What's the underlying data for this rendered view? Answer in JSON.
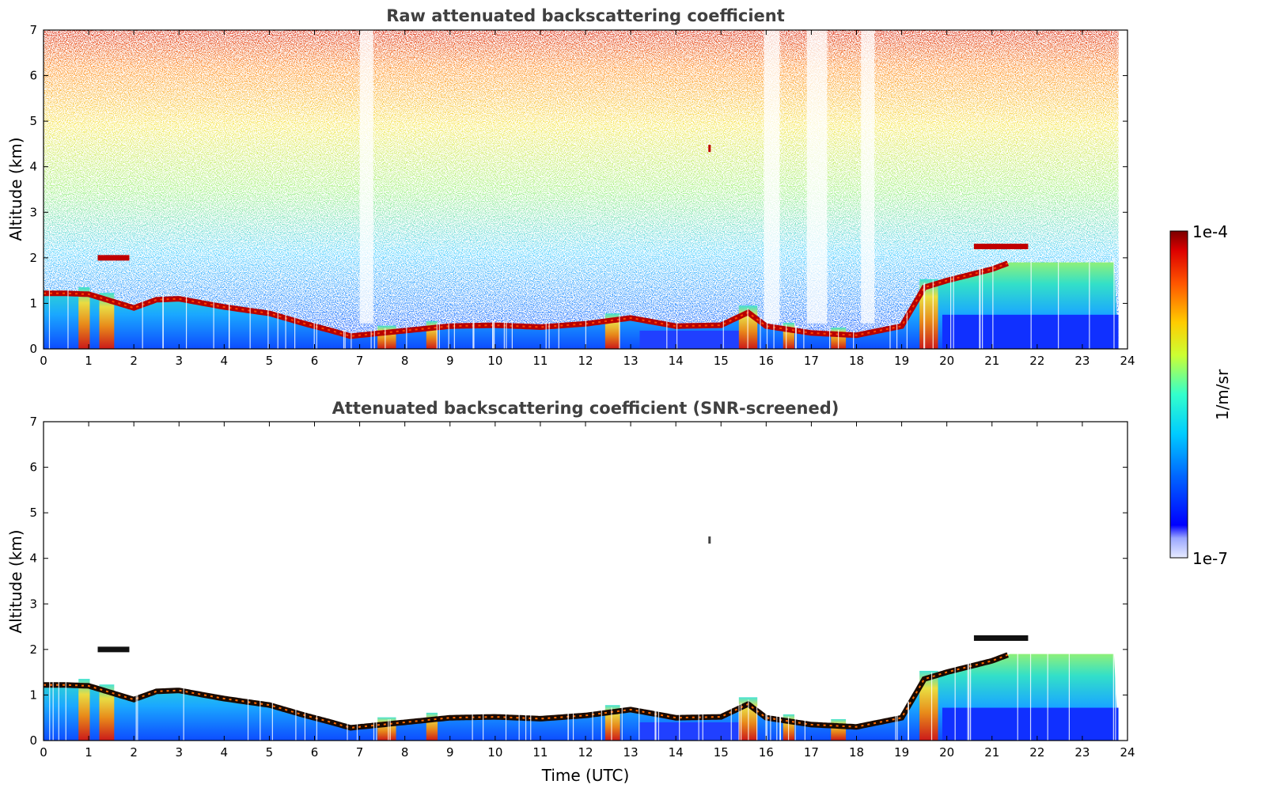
{
  "chart_data": [
    {
      "type": "heatmap",
      "title": "Raw attenuated backscattering coefficient",
      "xlabel": "",
      "ylabel": "Altitude (km)",
      "xlim": [
        0,
        24
      ],
      "ylim": [
        0,
        7
      ],
      "xticks": [
        "0",
        "1",
        "2",
        "3",
        "4",
        "5",
        "6",
        "7",
        "8",
        "9",
        "10",
        "11",
        "12",
        "13",
        "14",
        "15",
        "16",
        "17",
        "18",
        "19",
        "20",
        "21",
        "22",
        "23",
        "24"
      ],
      "yticks": [
        "0",
        "1",
        "2",
        "3",
        "4",
        "5",
        "6",
        "7"
      ],
      "screened": false,
      "layer_height_km": [
        [
          0,
          1.22
        ],
        [
          0.5,
          1.22
        ],
        [
          1,
          1.2
        ],
        [
          1.5,
          1.05
        ],
        [
          2,
          0.9
        ],
        [
          2.5,
          1.08
        ],
        [
          3,
          1.1
        ],
        [
          4,
          0.92
        ],
        [
          5,
          0.78
        ],
        [
          5.8,
          0.55
        ],
        [
          6.3,
          0.42
        ],
        [
          6.8,
          0.28
        ],
        [
          7.2,
          0.32
        ],
        [
          8,
          0.4
        ],
        [
          9,
          0.5
        ],
        [
          10,
          0.52
        ],
        [
          11,
          0.48
        ],
        [
          12,
          0.55
        ],
        [
          13,
          0.68
        ],
        [
          14,
          0.5
        ],
        [
          15,
          0.52
        ],
        [
          15.6,
          0.8
        ],
        [
          16,
          0.5
        ],
        [
          17,
          0.35
        ],
        [
          18,
          0.3
        ],
        [
          19,
          0.5
        ],
        [
          19.5,
          1.35
        ],
        [
          20,
          1.5
        ],
        [
          21,
          1.75
        ],
        [
          21.4,
          1.9
        ]
      ],
      "elevated_layers": [
        {
          "x": [
            1.2,
            1.9
          ],
          "height_km": 2.0
        },
        {
          "x": [
            20.6,
            21.8
          ],
          "height_km": 2.25
        }
      ],
      "plume_events_utc": [
        0.9,
        1.4,
        7.6,
        8.6,
        12.6,
        15.6,
        16.5,
        17.6,
        19.6
      ]
    },
    {
      "type": "heatmap",
      "title": "Attenuated backscattering coefficient (SNR-screened)",
      "xlabel": "Time (UTC)",
      "ylabel": "Altitude (km)",
      "xlim": [
        0,
        24
      ],
      "ylim": [
        0,
        7
      ],
      "xticks": [
        "0",
        "1",
        "2",
        "3",
        "4",
        "5",
        "6",
        "7",
        "8",
        "9",
        "10",
        "11",
        "12",
        "13",
        "14",
        "15",
        "16",
        "17",
        "18",
        "19",
        "20",
        "21",
        "22",
        "23",
        "24"
      ],
      "yticks": [
        "0",
        "1",
        "2",
        "3",
        "4",
        "5",
        "6",
        "7"
      ],
      "screened": true
    }
  ],
  "colorbar": {
    "max_label": "1e-4",
    "min_label": "1e-7",
    "label": "1/m/sr",
    "scale": "log",
    "colormap": "jet"
  }
}
